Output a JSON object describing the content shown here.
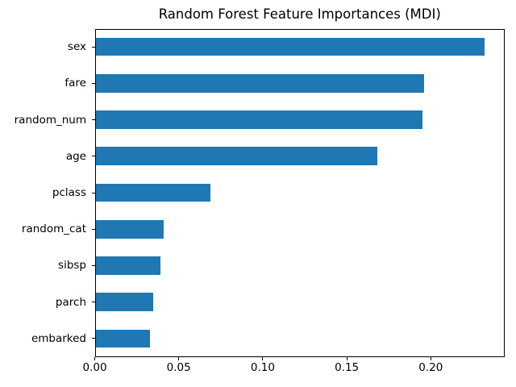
{
  "chart_data": {
    "type": "bar",
    "orientation": "horizontal",
    "title": "Random Forest Feature Importances (MDI)",
    "categories": [
      "sex",
      "fare",
      "random_num",
      "age",
      "pclass",
      "random_cat",
      "sibsp",
      "parch",
      "embarked"
    ],
    "values": [
      0.232,
      0.196,
      0.195,
      0.168,
      0.069,
      0.041,
      0.039,
      0.035,
      0.033
    ],
    "xlabel": "",
    "ylabel": "",
    "xlim": [
      0,
      0.244
    ],
    "xticks": {
      "values": [
        0,
        0.05,
        0.1,
        0.15,
        0.2
      ],
      "labels": [
        "0.00",
        "0.05",
        "0.10",
        "0.15",
        "0.20"
      ]
    },
    "grid": false,
    "legend": false,
    "bar_relative_height": 0.5,
    "bar_color": "#1f77b4",
    "axes_color": "#000000",
    "text_color": "#000000",
    "background_color": "#ffffff"
  }
}
